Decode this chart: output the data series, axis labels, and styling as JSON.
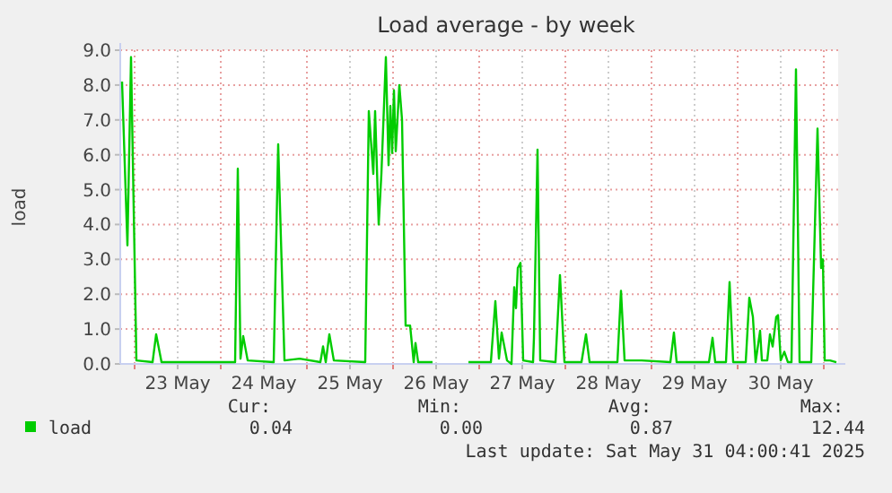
{
  "chart_data": {
    "type": "line",
    "title": "Load average - by week",
    "ylabel": "load",
    "x": [
      "2025-05-22T20:30",
      "2025-05-22T22:00",
      "2025-05-22T23:00",
      "2025-05-23T00:30",
      "2025-05-23T05:00",
      "2025-05-23T06:00",
      "2025-05-23T07:30",
      "2025-05-24T04:00",
      "2025-05-24T04:45",
      "2025-05-24T05:30",
      "2025-05-24T06:15",
      "2025-05-24T07:30",
      "2025-05-24T14:45",
      "2025-05-24T16:00",
      "2025-05-24T17:45",
      "2025-05-24T22:00",
      "2025-05-25T03:45",
      "2025-05-25T04:30",
      "2025-05-25T05:15",
      "2025-05-25T06:15",
      "2025-05-25T07:30",
      "2025-05-25T16:15",
      "2025-05-25T17:15",
      "2025-05-25T18:30",
      "2025-05-25T19:00",
      "2025-05-25T20:00",
      "2025-05-25T20:45",
      "2025-05-25T22:00",
      "2025-05-25T22:45",
      "2025-05-25T23:15",
      "2025-05-25T23:45",
      "2025-05-26T00:15",
      "2025-05-26T00:45",
      "2025-05-26T01:45",
      "2025-05-26T02:30",
      "2025-05-26T03:30",
      "2025-05-26T04:45",
      "2025-05-26T05:45",
      "2025-05-26T06:15",
      "2025-05-26T07:00",
      "2025-05-26T11:00",
      "2025-05-26T16:00",
      "2025-05-26T21:00",
      "2025-05-27T03:15",
      "2025-05-27T04:30",
      "2025-05-27T05:30",
      "2025-05-27T06:15",
      "2025-05-27T07:45",
      "2025-05-27T09:00",
      "2025-05-27T09:45",
      "2025-05-27T10:15",
      "2025-05-27T10:45",
      "2025-05-27T11:30",
      "2025-05-27T12:15",
      "2025-05-27T15:00",
      "2025-05-27T15:15",
      "2025-05-27T16:15",
      "2025-05-27T17:00",
      "2025-05-27T21:15",
      "2025-05-27T22:30",
      "2025-05-27T23:45",
      "2025-05-28T04:30",
      "2025-05-28T05:45",
      "2025-05-28T06:45",
      "2025-05-28T14:30",
      "2025-05-28T15:30",
      "2025-05-28T16:30",
      "2025-05-28T21:15",
      "2025-05-29T05:15",
      "2025-05-29T06:15",
      "2025-05-29T07:00",
      "2025-05-29T16:00",
      "2025-05-29T17:00",
      "2025-05-29T17:45",
      "2025-05-29T20:45",
      "2025-05-29T21:45",
      "2025-05-29T22:45",
      "2025-05-30T02:15",
      "2025-05-30T03:15",
      "2025-05-30T04:15",
      "2025-05-30T05:00",
      "2025-05-30T06:15",
      "2025-05-30T06:45",
      "2025-05-30T08:15",
      "2025-05-30T09:00",
      "2025-05-30T09:45",
      "2025-05-30T10:45",
      "2025-05-30T11:15",
      "2025-05-30T12:00",
      "2025-05-30T13:00",
      "2025-05-30T14:00",
      "2025-05-30T15:00",
      "2025-05-30T16:15",
      "2025-05-30T17:15",
      "2025-05-30T20:30",
      "2025-05-30T22:15",
      "2025-05-30T23:15",
      "2025-05-30T23:45",
      "2025-05-31T00:15",
      "2025-05-31T01:45",
      "2025-05-31T03:30"
    ],
    "series": [
      {
        "name": "load",
        "color": "#00cc00",
        "values": [
          8.1,
          3.4,
          8.8,
          0.1,
          0.05,
          0.85,
          0.05,
          0.05,
          5.6,
          0.15,
          0.8,
          0.1,
          0.05,
          6.3,
          0.1,
          0.15,
          0.05,
          0.5,
          0.05,
          0.85,
          0.1,
          0.05,
          7.25,
          5.45,
          7.25,
          4.0,
          5.45,
          8.8,
          5.7,
          7.4,
          6.05,
          7.85,
          6.1,
          8.0,
          7.0,
          1.1,
          1.1,
          0.05,
          0.6,
          0.05,
          0.05,
          null,
          0.05,
          0.05,
          1.8,
          0.15,
          0.9,
          0.1,
          0.0,
          2.2,
          1.6,
          2.75,
          2.9,
          0.1,
          0.05,
          0.75,
          6.15,
          0.1,
          0.05,
          2.55,
          0.05,
          0.05,
          0.85,
          0.05,
          0.05,
          2.1,
          0.1,
          0.1,
          0.05,
          0.9,
          0.05,
          0.05,
          0.75,
          0.05,
          0.05,
          2.35,
          0.05,
          0.05,
          1.9,
          1.35,
          0.05,
          0.95,
          0.1,
          0.1,
          0.85,
          0.5,
          1.35,
          1.4,
          0.1,
          0.35,
          0.05,
          0.05,
          8.45,
          0.05,
          0.05,
          6.75,
          2.75,
          3.0,
          0.1,
          0.1,
          0.05
        ]
      }
    ],
    "xlim": [
      "2025-05-22T20:00",
      "2025-05-31T04:00"
    ],
    "xticks": [
      {
        "value": "2025-05-23T00:00",
        "label": null
      },
      {
        "value": "2025-05-23T12:00",
        "label": "23 May"
      },
      {
        "value": "2025-05-24T00:00",
        "label": null
      },
      {
        "value": "2025-05-24T12:00",
        "label": "24 May"
      },
      {
        "value": "2025-05-25T00:00",
        "label": null
      },
      {
        "value": "2025-05-25T12:00",
        "label": "25 May"
      },
      {
        "value": "2025-05-26T00:00",
        "label": null
      },
      {
        "value": "2025-05-26T12:00",
        "label": "26 May"
      },
      {
        "value": "2025-05-27T00:00",
        "label": null
      },
      {
        "value": "2025-05-27T12:00",
        "label": "27 May"
      },
      {
        "value": "2025-05-28T00:00",
        "label": null
      },
      {
        "value": "2025-05-28T12:00",
        "label": "28 May"
      },
      {
        "value": "2025-05-29T00:00",
        "label": null
      },
      {
        "value": "2025-05-29T12:00",
        "label": "29 May"
      },
      {
        "value": "2025-05-30T00:00",
        "label": null
      },
      {
        "value": "2025-05-30T12:00",
        "label": "30 May"
      },
      {
        "value": "2025-05-31T00:00",
        "label": null
      }
    ],
    "ylim": [
      0,
      9
    ],
    "yticks": [
      {
        "value": 0,
        "label": "0.0"
      },
      {
        "value": 1,
        "label": "1.0"
      },
      {
        "value": 2,
        "label": "2.0"
      },
      {
        "value": 3,
        "label": "3.0"
      },
      {
        "value": 4,
        "label": "4.0"
      },
      {
        "value": 5,
        "label": "5.0"
      },
      {
        "value": 6,
        "label": "6.0"
      },
      {
        "value": 7,
        "label": "7.0"
      },
      {
        "value": 8,
        "label": "8.0"
      },
      {
        "value": 9,
        "label": "9.0"
      }
    ],
    "grid": true,
    "legend": "bottom left",
    "marker": "none",
    "line_style": "solid",
    "annotations": [
      "Cur:",
      "0.04",
      "Min:",
      "0.00",
      "Avg:",
      "0.87",
      "Max:",
      "12.44",
      "Last update: Sat May 31 04:00:41 2025"
    ]
  }
}
